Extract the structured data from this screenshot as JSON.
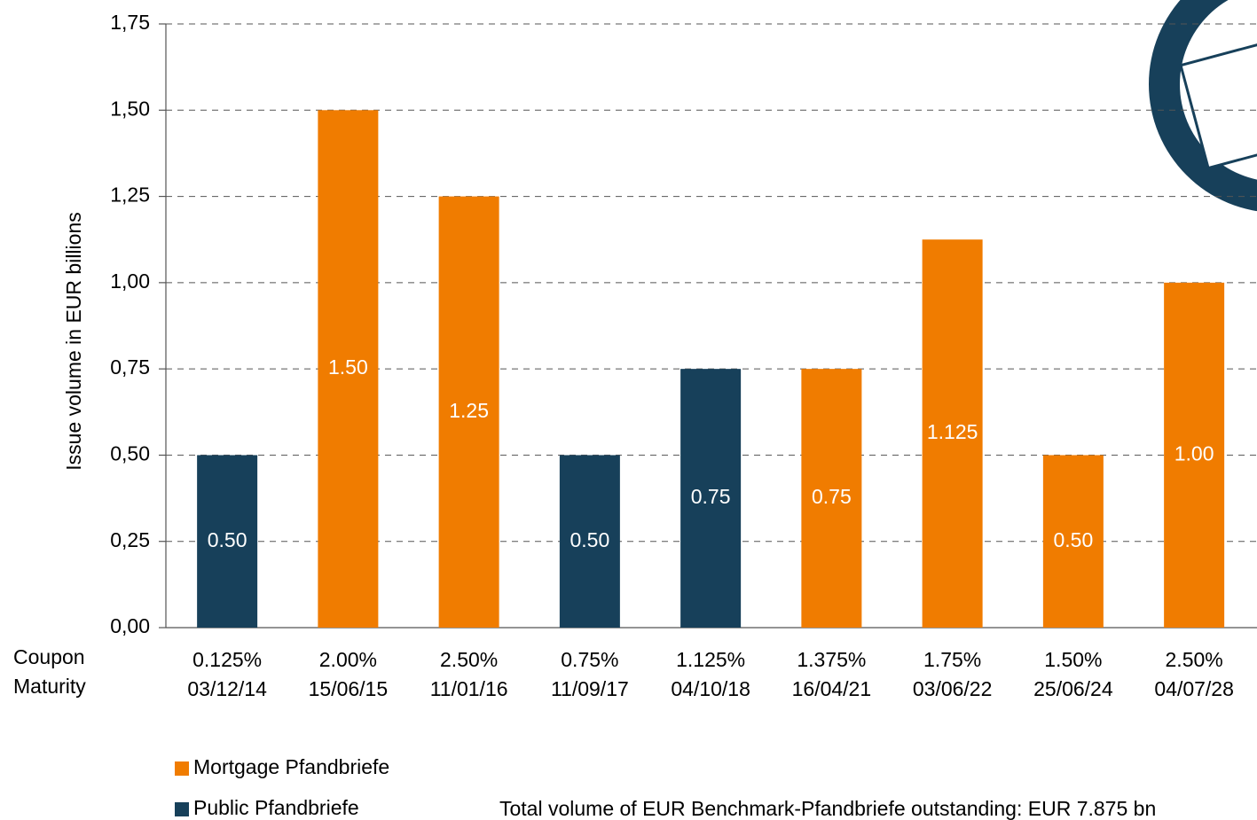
{
  "chart_data": {
    "type": "bar",
    "y_label": "Issue volume in EUR billions",
    "row_labels": [
      "Coupon",
      "Maturity"
    ],
    "categories": [
      "0.125%",
      "2.00%",
      "2.50%",
      "0.75%",
      "1.125%",
      "1.375%",
      "1.75%",
      "1.50%",
      "2.50%"
    ],
    "maturities": [
      "03/12/14",
      "15/06/15",
      "11/01/16",
      "11/09/17",
      "04/10/18",
      "16/04/21",
      "03/06/22",
      "25/06/24",
      "04/07/28"
    ],
    "series": [
      {
        "name": "Mortgage Pfandbriefe",
        "color": "#f07c00",
        "values": [
          null,
          1.5,
          1.25,
          null,
          null,
          0.75,
          1.125,
          0.5,
          1.0
        ],
        "value_labels": [
          null,
          "1.50",
          "1.25",
          null,
          null,
          "0.75",
          "1.125",
          "0.50",
          "1.00"
        ]
      },
      {
        "name": "Public Pfandbriefe",
        "color": "#17405a",
        "values": [
          0.5,
          null,
          null,
          0.5,
          0.75,
          null,
          null,
          null,
          null
        ],
        "value_labels": [
          "0.50",
          null,
          null,
          "0.50",
          "0.75",
          null,
          null,
          null,
          null
        ]
      }
    ],
    "ylim": [
      0,
      1.75
    ],
    "yticks": [
      {
        "value": 0,
        "label": "0,00"
      },
      {
        "value": 0.25,
        "label": "0,25"
      },
      {
        "value": 0.5,
        "label": "0,50"
      },
      {
        "value": 0.75,
        "label": "0,75"
      },
      {
        "value": 1,
        "label": "1,00"
      },
      {
        "value": 1.25,
        "label": "1,25"
      },
      {
        "value": 1.5,
        "label": "1,50"
      },
      {
        "value": 1.75,
        "label": "1,75"
      }
    ],
    "grid": true,
    "footnote": "Total volume of EUR Benchmark-Pfandbriefe outstanding: EUR 7.875 bn"
  }
}
